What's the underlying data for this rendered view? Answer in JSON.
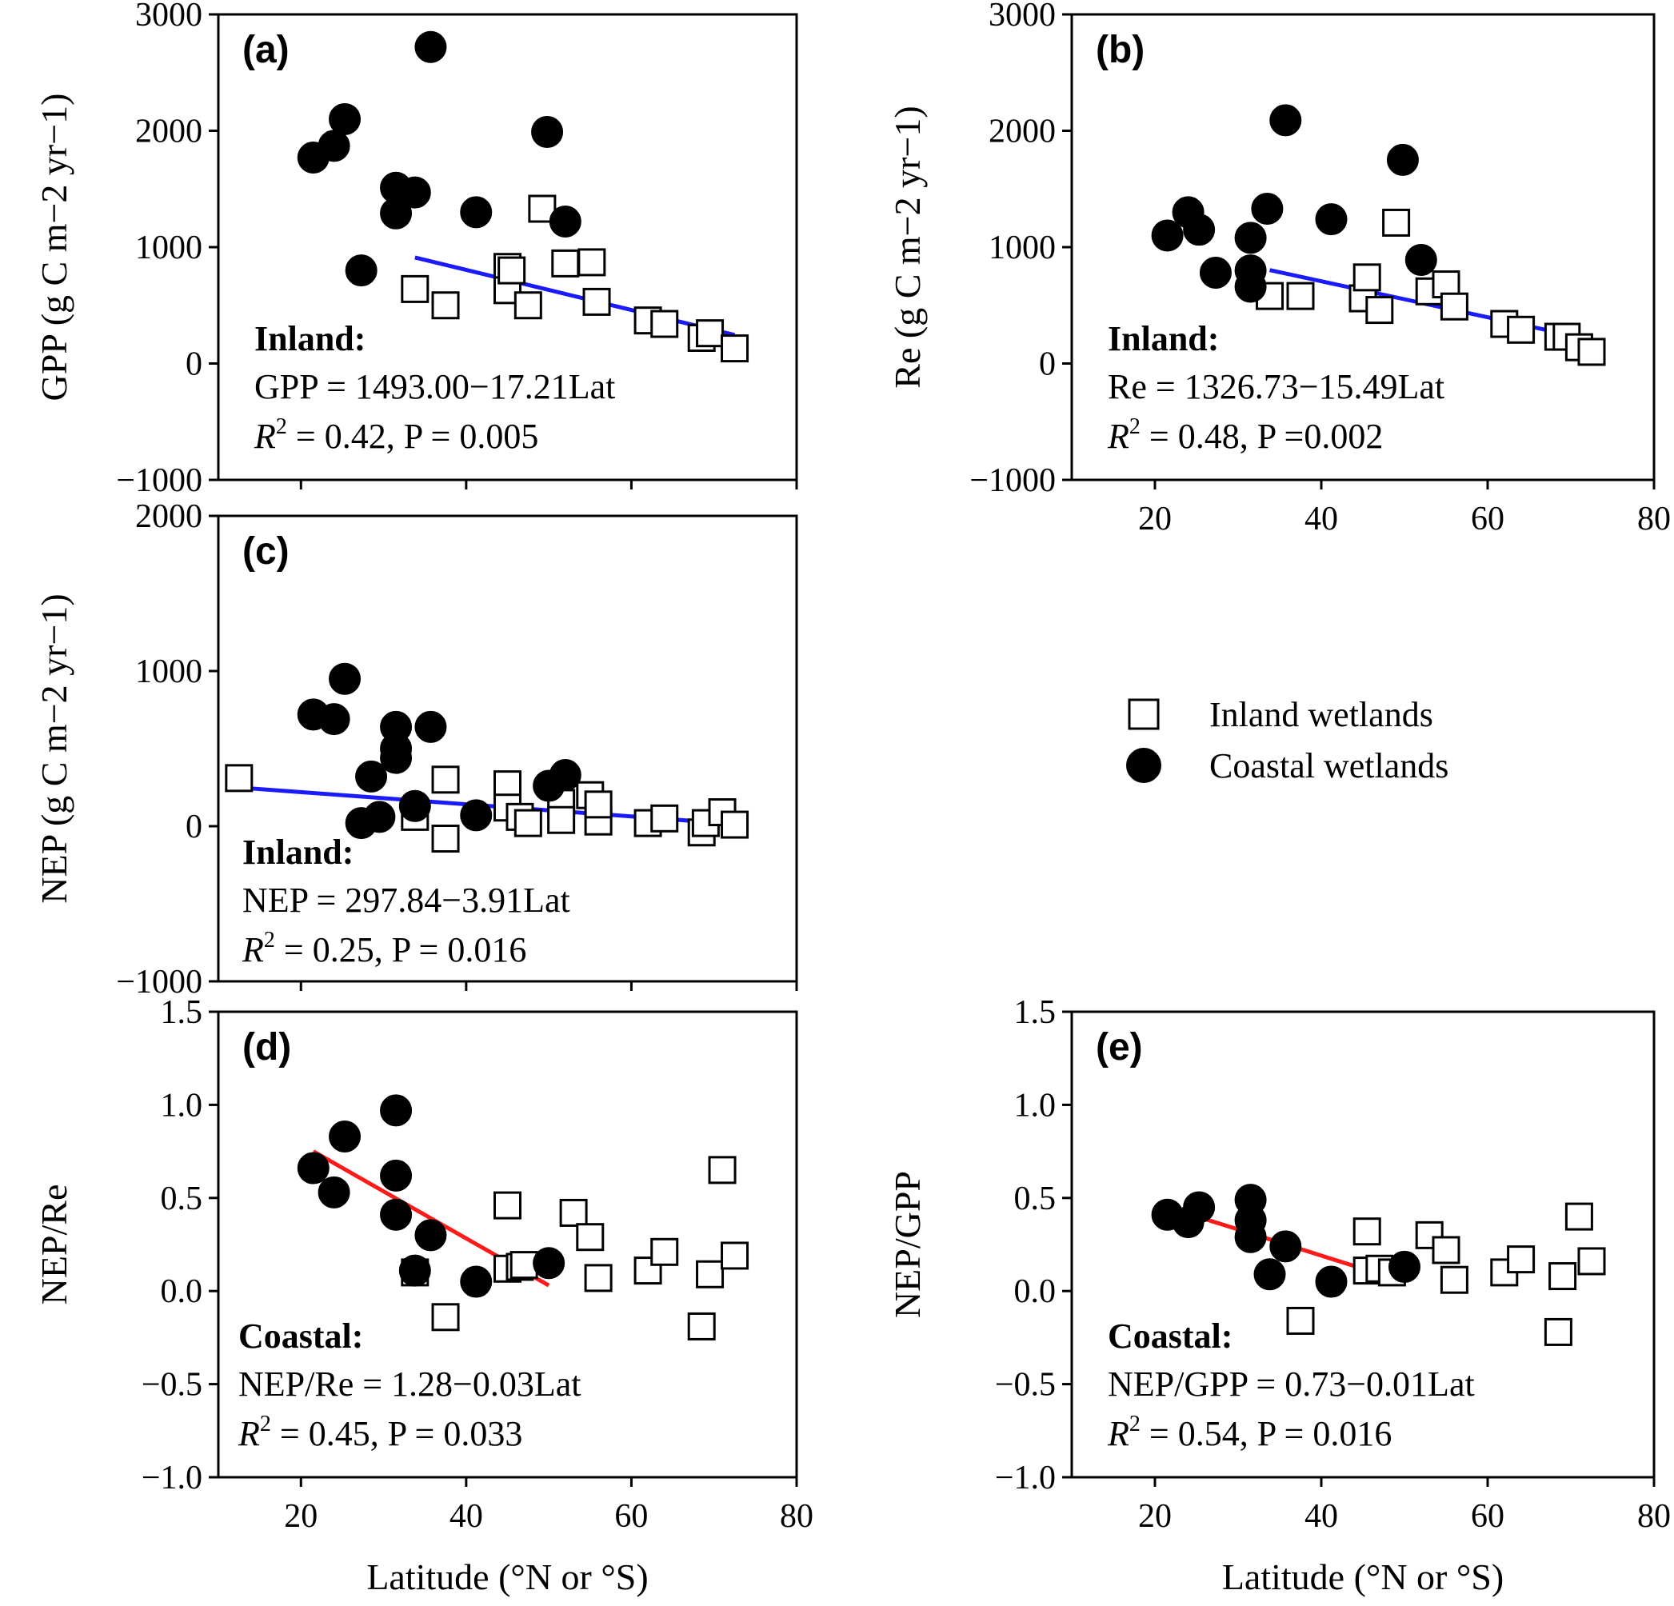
{
  "colors": {
    "inland_fit": "#1a1aff",
    "coastal_fit": "#ff1a1a",
    "marker": "#000000"
  },
  "legend": {
    "inland": {
      "marker": "open-square",
      "label": "Inland wetlands"
    },
    "coastal": {
      "marker": "filled-circle",
      "label": "Coastal wetlands"
    }
  },
  "chart_data": [
    {
      "id": "a",
      "type": "scatter",
      "panel_label": "(a)",
      "ylabel": "GPP (g C m−2 yr−1)",
      "xlabel": "",
      "xlim": [
        10,
        80
      ],
      "ylim": [
        -1000,
        3000
      ],
      "xticks": [
        20,
        40,
        60,
        80
      ],
      "yticks": [
        -1000,
        0,
        1000,
        2000,
        3000
      ],
      "show_xticklabels": false,
      "annotation": {
        "title": "Inland:",
        "equation": "GPP = 1493.00−17.21Lat",
        "stats_r": "R",
        "stats_sup": "2",
        "stats_rest": " = 0.42, P = 0.005"
      },
      "fit": {
        "group": "inland",
        "x": [
          33.8,
          72.5
        ],
        "y": [
          911,
          245
        ]
      },
      "series": [
        {
          "group": "inland",
          "points": [
            [
              33.8,
              640
            ],
            [
              37.5,
              500
            ],
            [
              45,
              830
            ],
            [
              45,
              630
            ],
            [
              45.5,
              800
            ],
            [
              47.5,
              500
            ],
            [
              49.2,
              1330
            ],
            [
              52,
              860
            ],
            [
              55.2,
              870
            ],
            [
              55.8,
              530
            ],
            [
              62,
              370
            ],
            [
              64,
              340
            ],
            [
              68.5,
              220
            ],
            [
              69.5,
              260
            ],
            [
              72.5,
              130
            ]
          ]
        },
        {
          "group": "coastal",
          "points": [
            [
              21.5,
              1770
            ],
            [
              24,
              1870
            ],
            [
              25.3,
              2100
            ],
            [
              27.3,
              800
            ],
            [
              31.5,
              1510
            ],
            [
              31.5,
              1290
            ],
            [
              33.8,
              1470
            ],
            [
              35.7,
              2720
            ],
            [
              41.2,
              1300
            ],
            [
              49.8,
              1990
            ],
            [
              52,
              1220
            ]
          ]
        }
      ]
    },
    {
      "id": "b",
      "type": "scatter",
      "panel_label": "(b)",
      "ylabel": "Re (g C m−2 yr−1)",
      "xlabel": "",
      "xlim": [
        10,
        80
      ],
      "ylim": [
        -1000,
        3000
      ],
      "xticks": [
        20,
        40,
        60,
        80
      ],
      "yticks": [
        -1000,
        0,
        1000,
        2000,
        3000
      ],
      "show_xticklabels": true,
      "annotation": {
        "title": "Inland:",
        "equation": "Re = 1326.73−15.49Lat",
        "stats_r": "R",
        "stats_sup": "2",
        "stats_rest": " = 0.48, P =0.002"
      },
      "fit": {
        "group": "inland",
        "x": [
          33.8,
          72.5
        ],
        "y": [
          803,
          204
        ]
      },
      "series": [
        {
          "group": "inland",
          "points": [
            [
              33.8,
              580
            ],
            [
              37.5,
              580
            ],
            [
              45,
              560
            ],
            [
              45.5,
              740
            ],
            [
              47,
              460
            ],
            [
              49,
              1210
            ],
            [
              53,
              620
            ],
            [
              55,
              680
            ],
            [
              56,
              490
            ],
            [
              62,
              340
            ],
            [
              64,
              290
            ],
            [
              68.5,
              230
            ],
            [
              69.5,
              230
            ],
            [
              71,
              140
            ],
            [
              72.5,
              100
            ]
          ]
        },
        {
          "group": "coastal",
          "points": [
            [
              21.5,
              1100
            ],
            [
              24,
              1300
            ],
            [
              25.3,
              1150
            ],
            [
              27.3,
              780
            ],
            [
              31.5,
              1080
            ],
            [
              31.5,
              800
            ],
            [
              31.5,
              660
            ],
            [
              33.5,
              1330
            ],
            [
              35.7,
              2090
            ],
            [
              41.2,
              1240
            ],
            [
              49.8,
              1750
            ],
            [
              52,
              890
            ]
          ]
        }
      ]
    },
    {
      "id": "c",
      "type": "scatter",
      "panel_label": "(c)",
      "ylabel": "NEP (g C m−2 yr−1)",
      "xlabel": "",
      "xlim": [
        10,
        80
      ],
      "ylim": [
        -1000,
        2000
      ],
      "xticks": [
        20,
        40,
        60,
        80
      ],
      "yticks": [
        -1000,
        0,
        1000,
        2000
      ],
      "show_xticklabels": false,
      "annotation": {
        "title": "Inland:",
        "equation": "NEP = 297.84−3.91Lat",
        "stats_r": "R",
        "stats_sup": "2",
        "stats_rest": " = 0.25, P = 0.016"
      },
      "fit": {
        "group": "inland",
        "x": [
          12.5,
          72.5
        ],
        "y": [
          249,
          14
        ]
      },
      "series": [
        {
          "group": "inland",
          "points": [
            [
              12.5,
              310
            ],
            [
              33.8,
              60
            ],
            [
              37.5,
              -80
            ],
            [
              37.5,
              300
            ],
            [
              45,
              270
            ],
            [
              45,
              120
            ],
            [
              46.5,
              60
            ],
            [
              47.5,
              20
            ],
            [
              51.5,
              150
            ],
            [
              51.5,
              40
            ],
            [
              55,
              200
            ],
            [
              56,
              30
            ],
            [
              56,
              140
            ],
            [
              62,
              20
            ],
            [
              64,
              50
            ],
            [
              68.5,
              -40
            ],
            [
              69,
              20
            ],
            [
              71,
              90
            ],
            [
              72.5,
              10
            ]
          ]
        },
        {
          "group": "coastal",
          "points": [
            [
              21.5,
              720
            ],
            [
              24,
              690
            ],
            [
              25.3,
              950
            ],
            [
              27.3,
              20
            ],
            [
              28.5,
              320
            ],
            [
              29.5,
              60
            ],
            [
              31.5,
              640
            ],
            [
              31.5,
              500
            ],
            [
              31.5,
              440
            ],
            [
              33.8,
              130
            ],
            [
              35.7,
              640
            ],
            [
              41.2,
              70
            ],
            [
              50,
              260
            ],
            [
              52,
              330
            ]
          ]
        }
      ]
    },
    {
      "id": "d",
      "type": "scatter",
      "panel_label": "(d)",
      "ylabel": "NEP/Re",
      "xlabel": "Latitude (°N or °S)",
      "xlim": [
        10,
        80
      ],
      "ylim": [
        -1.0,
        1.5
      ],
      "xticks": [
        20,
        40,
        60,
        80
      ],
      "yticks": [
        -1.0,
        -0.5,
        0.0,
        0.5,
        1.0,
        1.5
      ],
      "show_xticklabels": true,
      "annotation": {
        "title": "Coastal:",
        "equation": "NEP/Re = 1.28−0.03Lat",
        "stats_r": "R",
        "stats_sup": "2",
        "stats_rest": " = 0.45, P = 0.033"
      },
      "fit": {
        "group": "coastal",
        "x": [
          21.5,
          50
        ],
        "y": [
          0.75,
          0.03
        ]
      },
      "series": [
        {
          "group": "inland",
          "points": [
            [
              33.8,
              0.1
            ],
            [
              37.5,
              -0.14
            ],
            [
              45,
              0.46
            ],
            [
              45,
              0.12
            ],
            [
              46.5,
              0.13
            ],
            [
              47,
              0.14
            ],
            [
              53,
              0.42
            ],
            [
              55,
              0.29
            ],
            [
              56,
              0.07
            ],
            [
              62,
              0.11
            ],
            [
              64,
              0.21
            ],
            [
              68.5,
              -0.19
            ],
            [
              69.5,
              0.09
            ],
            [
              71,
              0.65
            ],
            [
              72.5,
              0.19
            ]
          ]
        },
        {
          "group": "coastal",
          "points": [
            [
              21.5,
              0.66
            ],
            [
              24,
              0.53
            ],
            [
              25.3,
              0.83
            ],
            [
              31.5,
              0.97
            ],
            [
              31.5,
              0.62
            ],
            [
              31.5,
              0.41
            ],
            [
              33.8,
              0.11
            ],
            [
              35.7,
              0.3
            ],
            [
              41.2,
              0.05
            ],
            [
              50,
              0.15
            ]
          ]
        }
      ]
    },
    {
      "id": "e",
      "type": "scatter",
      "panel_label": "(e)",
      "ylabel": "NEP/GPP",
      "xlabel": "Latitude (°N or °S)",
      "xlim": [
        10,
        80
      ],
      "ylim": [
        -1.0,
        1.5
      ],
      "xticks": [
        20,
        40,
        60,
        80
      ],
      "yticks": [
        -1.0,
        -0.5,
        0.0,
        0.5,
        1.0,
        1.5
      ],
      "show_xticklabels": true,
      "annotation": {
        "title": "Coastal:",
        "equation": "NEP/GPP = 0.73−0.01Lat",
        "stats_r": "R",
        "stats_sup": "2",
        "stats_rest": " = 0.54, P = 0.016"
      },
      "fit": {
        "group": "coastal",
        "x": [
          21.5,
          50
        ],
        "y": [
          0.45,
          0.05
        ]
      },
      "series": [
        {
          "group": "inland",
          "points": [
            [
              37.5,
              -0.16
            ],
            [
              45.5,
              0.32
            ],
            [
              45.5,
              0.11
            ],
            [
              47,
              0.12
            ],
            [
              48.5,
              0.1
            ],
            [
              53,
              0.3
            ],
            [
              55,
              0.22
            ],
            [
              56,
              0.06
            ],
            [
              62,
              0.1
            ],
            [
              64,
              0.17
            ],
            [
              68.5,
              -0.22
            ],
            [
              69,
              0.08
            ],
            [
              71,
              0.4
            ],
            [
              72.5,
              0.16
            ]
          ]
        },
        {
          "group": "coastal",
          "points": [
            [
              21.5,
              0.41
            ],
            [
              24,
              0.37
            ],
            [
              25.3,
              0.45
            ],
            [
              31.5,
              0.49
            ],
            [
              31.5,
              0.38
            ],
            [
              31.5,
              0.29
            ],
            [
              33.8,
              0.09
            ],
            [
              35.7,
              0.24
            ],
            [
              41.2,
              0.05
            ],
            [
              50,
              0.13
            ]
          ]
        }
      ]
    }
  ]
}
